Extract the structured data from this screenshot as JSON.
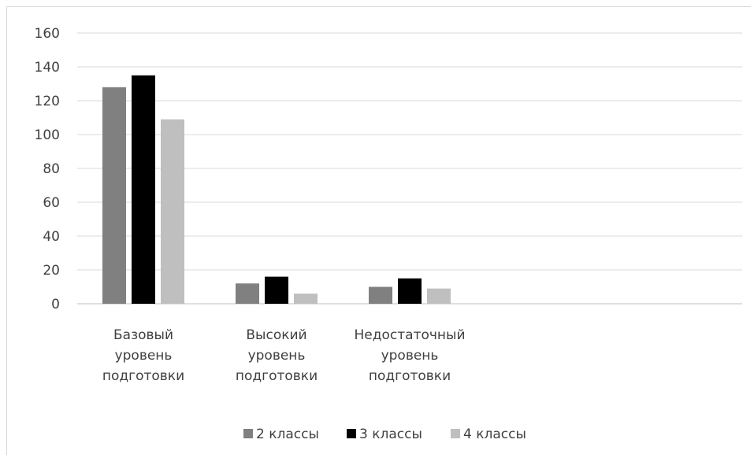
{
  "chart_data": {
    "type": "bar",
    "categories": [
      [
        "Базовый",
        "уровень",
        "подготовки"
      ],
      [
        "Высокий",
        "уровень",
        "подготовки"
      ],
      [
        "Недостаточный",
        "уровень",
        "подготовки"
      ]
    ],
    "series": [
      {
        "name": "2 классы",
        "values": [
          128,
          12,
          10
        ],
        "color": "#808080"
      },
      {
        "name": "3 классы",
        "values": [
          135,
          16,
          15
        ],
        "color": "#000000"
      },
      {
        "name": "4 классы",
        "values": [
          109,
          6,
          9
        ],
        "color": "#bfbfbf"
      }
    ],
    "yticks": [
      "0",
      "20",
      "40",
      "60",
      "80",
      "100",
      "120",
      "140",
      "160"
    ],
    "ylim": [
      0,
      160
    ],
    "grid": true,
    "legend_position": "bottom"
  }
}
